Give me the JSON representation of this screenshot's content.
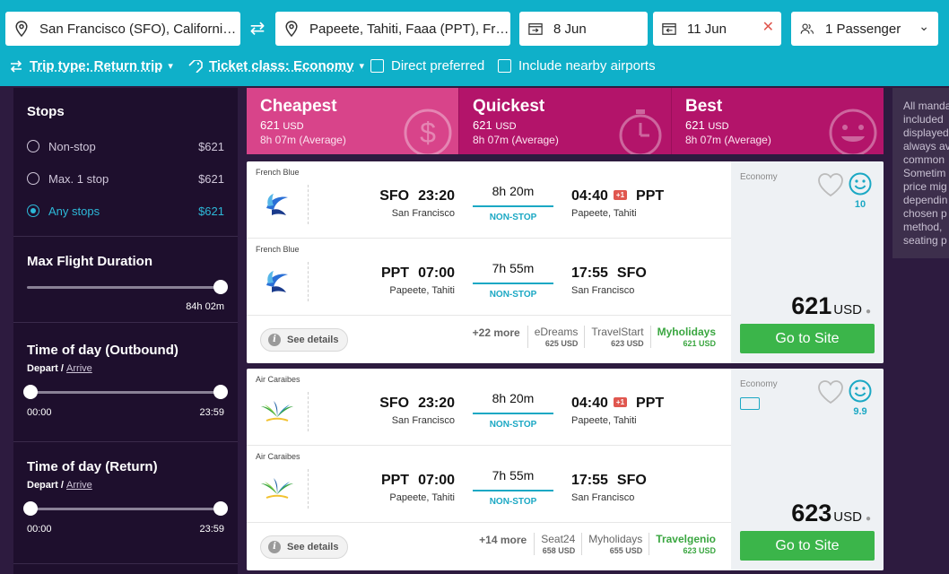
{
  "search": {
    "origin": "San Francisco (SFO), California, ...",
    "destination": "Papeete, Tahiti, Faaa (PPT), Fren...",
    "depart_date": "8 Jun",
    "return_date": "11 Jun",
    "passengers": "1 Passenger",
    "swap_symbol": "⇄",
    "clear_symbol": "✕",
    "pax_caret": "⌄"
  },
  "options": {
    "trip_type": "Trip type: Return trip",
    "ticket_class": "Ticket class: Economy",
    "direct_preferred": "Direct preferred",
    "nearby_airports": "Include nearby airports"
  },
  "sidebar": {
    "stops_title": "Stops",
    "stops": [
      {
        "label": "Non-stop",
        "price": "$621",
        "selected": false
      },
      {
        "label": "Max. 1 stop",
        "price": "$621",
        "selected": false
      },
      {
        "label": "Any stops",
        "price": "$621",
        "selected": true
      }
    ],
    "max_duration_title": "Max Flight Duration",
    "max_duration_value": "84h 02m",
    "max_duration_level": 1.0,
    "outbound_title": "Time of day (Outbound)",
    "outbound_depart": "Depart",
    "outbound_sep": "/",
    "outbound_arrive": "Arrive",
    "outbound_min": "00:00",
    "outbound_max": "23:59",
    "return_title": "Time of day (Return)",
    "return_depart": "Depart",
    "return_sep": "/",
    "return_arrive": "Arrive",
    "return_min": "00:00",
    "return_max": "23:59"
  },
  "tabs": [
    {
      "title": "Cheapest",
      "price": "621",
      "currency": "USD",
      "duration": "8h 07m (Average)",
      "icon": "dollar-icon"
    },
    {
      "title": "Quickest",
      "price": "621",
      "currency": "USD",
      "duration": "8h 07m (Average)",
      "icon": "stopwatch-icon"
    },
    {
      "title": "Best",
      "price": "621",
      "currency": "USD",
      "duration": "8h 07m (Average)",
      "icon": "smiley-icon"
    }
  ],
  "results": [
    {
      "legs": [
        {
          "airline": "French Blue",
          "dep_code": "SFO",
          "dep_time": "23:20",
          "dep_city": "San Francisco",
          "duration": "8h 20m",
          "stops": "NON-STOP",
          "arr_time": "04:40",
          "plus": "+1",
          "arr_code": "PPT",
          "arr_city": "Papeete, Tahiti"
        },
        {
          "airline": "French Blue",
          "dep_code": "PPT",
          "dep_time": "07:00",
          "dep_city": "Papeete, Tahiti",
          "duration": "7h 55m",
          "stops": "NON-STOP",
          "arr_time": "17:55",
          "plus": "",
          "arr_code": "SFO",
          "arr_city": "San Francisco"
        }
      ],
      "see_details": "See details",
      "more": "+22 more",
      "providers": [
        {
          "name": "eDreams",
          "price": "625 USD"
        },
        {
          "name": "TravelStart",
          "price": "623 USD"
        },
        {
          "name": "Myholidays",
          "price": "621 USD"
        }
      ],
      "cabin": "Economy",
      "score": "10",
      "price": "621",
      "currency": "USD",
      "go_label": "Go to Site"
    },
    {
      "legs": [
        {
          "airline": "Air Caraibes",
          "dep_code": "SFO",
          "dep_time": "23:20",
          "dep_city": "San Francisco",
          "duration": "8h 20m",
          "stops": "NON-STOP",
          "arr_time": "04:40",
          "plus": "+1",
          "arr_code": "PPT",
          "arr_city": "Papeete, Tahiti"
        },
        {
          "airline": "Air Caraibes",
          "dep_code": "PPT",
          "dep_time": "07:00",
          "dep_city": "Papeete, Tahiti",
          "duration": "7h 55m",
          "stops": "NON-STOP",
          "arr_time": "17:55",
          "plus": "",
          "arr_code": "SFO",
          "arr_city": "San Francisco"
        }
      ],
      "see_details": "See details",
      "more": "+14 more",
      "providers": [
        {
          "name": "Seat24",
          "price": "658 USD"
        },
        {
          "name": "Myholidays",
          "price": "655 USD"
        },
        {
          "name": "Travelgenio",
          "price": "623 USD"
        }
      ],
      "cabin": "Economy",
      "score": "9.9",
      "price": "623",
      "currency": "USD",
      "go_label": "Go to Site"
    }
  ],
  "note": {
    "lines": [
      "All manda",
      "included",
      "displayed",
      "always av",
      "common",
      "Sometim",
      "price mig",
      "dependin",
      "chosen p",
      "method,",
      "seating p"
    ]
  },
  "colors": {
    "topbar": "#0fb0c9",
    "sidebar": "#1e0f2d",
    "accent": "#2db8d8",
    "cheapest_tab": "#d8448a",
    "other_tabs": "#b3146a",
    "go_button": "#3bb54a",
    "best_provider": "#3aa640",
    "plus_badge": "#e0574f"
  }
}
